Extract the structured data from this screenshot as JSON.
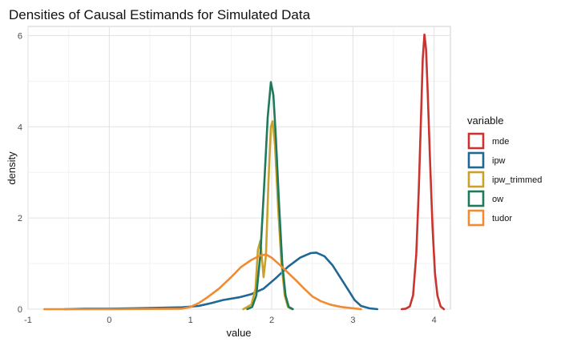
{
  "chart_data": {
    "type": "line",
    "title": "Densities of Causal Estimands for Simulated Data",
    "xlabel": "value",
    "ylabel": "density",
    "xlim": [
      -1,
      4.2
    ],
    "ylim": [
      0,
      6.2
    ],
    "x_ticks": [
      -1,
      0,
      1,
      2,
      3,
      4
    ],
    "y_ticks": [
      0,
      2,
      4,
      6
    ],
    "grid": true,
    "legend": {
      "title": "variable",
      "position": "right"
    },
    "series": [
      {
        "name": "mde",
        "color": "#c8342f",
        "points": [
          [
            3.6,
            0
          ],
          [
            3.65,
            0.01
          ],
          [
            3.7,
            0.06
          ],
          [
            3.74,
            0.3
          ],
          [
            3.78,
            1.2
          ],
          [
            3.81,
            2.6
          ],
          [
            3.84,
            4.3
          ],
          [
            3.86,
            5.5
          ],
          [
            3.88,
            6.02
          ],
          [
            3.9,
            5.7
          ],
          [
            3.92,
            4.8
          ],
          [
            3.95,
            3.2
          ],
          [
            3.98,
            1.8
          ],
          [
            4.01,
            0.8
          ],
          [
            4.04,
            0.3
          ],
          [
            4.08,
            0.06
          ],
          [
            4.12,
            0
          ]
        ]
      },
      {
        "name": "ipw",
        "color": "#1f6895",
        "points": [
          [
            -0.55,
            0
          ],
          [
            -0.3,
            0.01
          ],
          [
            0,
            0.01
          ],
          [
            0.3,
            0.02
          ],
          [
            0.6,
            0.03
          ],
          [
            0.9,
            0.04
          ],
          [
            1.1,
            0.07
          ],
          [
            1.25,
            0.13
          ],
          [
            1.4,
            0.2
          ],
          [
            1.6,
            0.26
          ],
          [
            1.75,
            0.33
          ],
          [
            1.9,
            0.45
          ],
          [
            2.05,
            0.68
          ],
          [
            2.2,
            0.93
          ],
          [
            2.35,
            1.13
          ],
          [
            2.48,
            1.23
          ],
          [
            2.55,
            1.24
          ],
          [
            2.65,
            1.16
          ],
          [
            2.75,
            0.96
          ],
          [
            2.85,
            0.68
          ],
          [
            2.95,
            0.4
          ],
          [
            3.02,
            0.2
          ],
          [
            3.1,
            0.07
          ],
          [
            3.2,
            0.02
          ],
          [
            3.3,
            0
          ]
        ]
      },
      {
        "name": "ipw_trimmed",
        "color": "#c9a12d",
        "points": [
          [
            1.65,
            0
          ],
          [
            1.75,
            0.1
          ],
          [
            1.8,
            0.45
          ],
          [
            1.83,
            1.3
          ],
          [
            1.86,
            1.5
          ],
          [
            1.9,
            0.7
          ],
          [
            1.93,
            1.2
          ],
          [
            1.96,
            2.8
          ],
          [
            1.99,
            4.0
          ],
          [
            2.01,
            4.12
          ],
          [
            2.04,
            3.6
          ],
          [
            2.08,
            2.2
          ],
          [
            2.12,
            1.0
          ],
          [
            2.16,
            0.3
          ],
          [
            2.2,
            0.05
          ],
          [
            2.25,
            0
          ]
        ]
      },
      {
        "name": "ow",
        "color": "#1e7a5a",
        "points": [
          [
            1.7,
            0
          ],
          [
            1.76,
            0.05
          ],
          [
            1.81,
            0.3
          ],
          [
            1.86,
            1.2
          ],
          [
            1.91,
            2.8
          ],
          [
            1.95,
            4.2
          ],
          [
            1.99,
            4.98
          ],
          [
            2.02,
            4.7
          ],
          [
            2.05,
            3.8
          ],
          [
            2.09,
            2.3
          ],
          [
            2.13,
            1.0
          ],
          [
            2.17,
            0.3
          ],
          [
            2.21,
            0.05
          ],
          [
            2.26,
            0
          ]
        ]
      },
      {
        "name": "tudor",
        "color": "#ef8b32",
        "points": [
          [
            -0.8,
            0
          ],
          [
            0,
            0
          ],
          [
            0.9,
            0.01
          ],
          [
            1.0,
            0.05
          ],
          [
            1.1,
            0.13
          ],
          [
            1.2,
            0.25
          ],
          [
            1.35,
            0.45
          ],
          [
            1.5,
            0.7
          ],
          [
            1.62,
            0.92
          ],
          [
            1.75,
            1.08
          ],
          [
            1.85,
            1.17
          ],
          [
            1.93,
            1.2
          ],
          [
            2.0,
            1.13
          ],
          [
            2.1,
            0.97
          ],
          [
            2.2,
            0.8
          ],
          [
            2.3,
            0.63
          ],
          [
            2.4,
            0.45
          ],
          [
            2.5,
            0.28
          ],
          [
            2.6,
            0.18
          ],
          [
            2.72,
            0.1
          ],
          [
            2.85,
            0.05
          ],
          [
            3.0,
            0.02
          ],
          [
            3.1,
            0
          ]
        ]
      }
    ]
  }
}
